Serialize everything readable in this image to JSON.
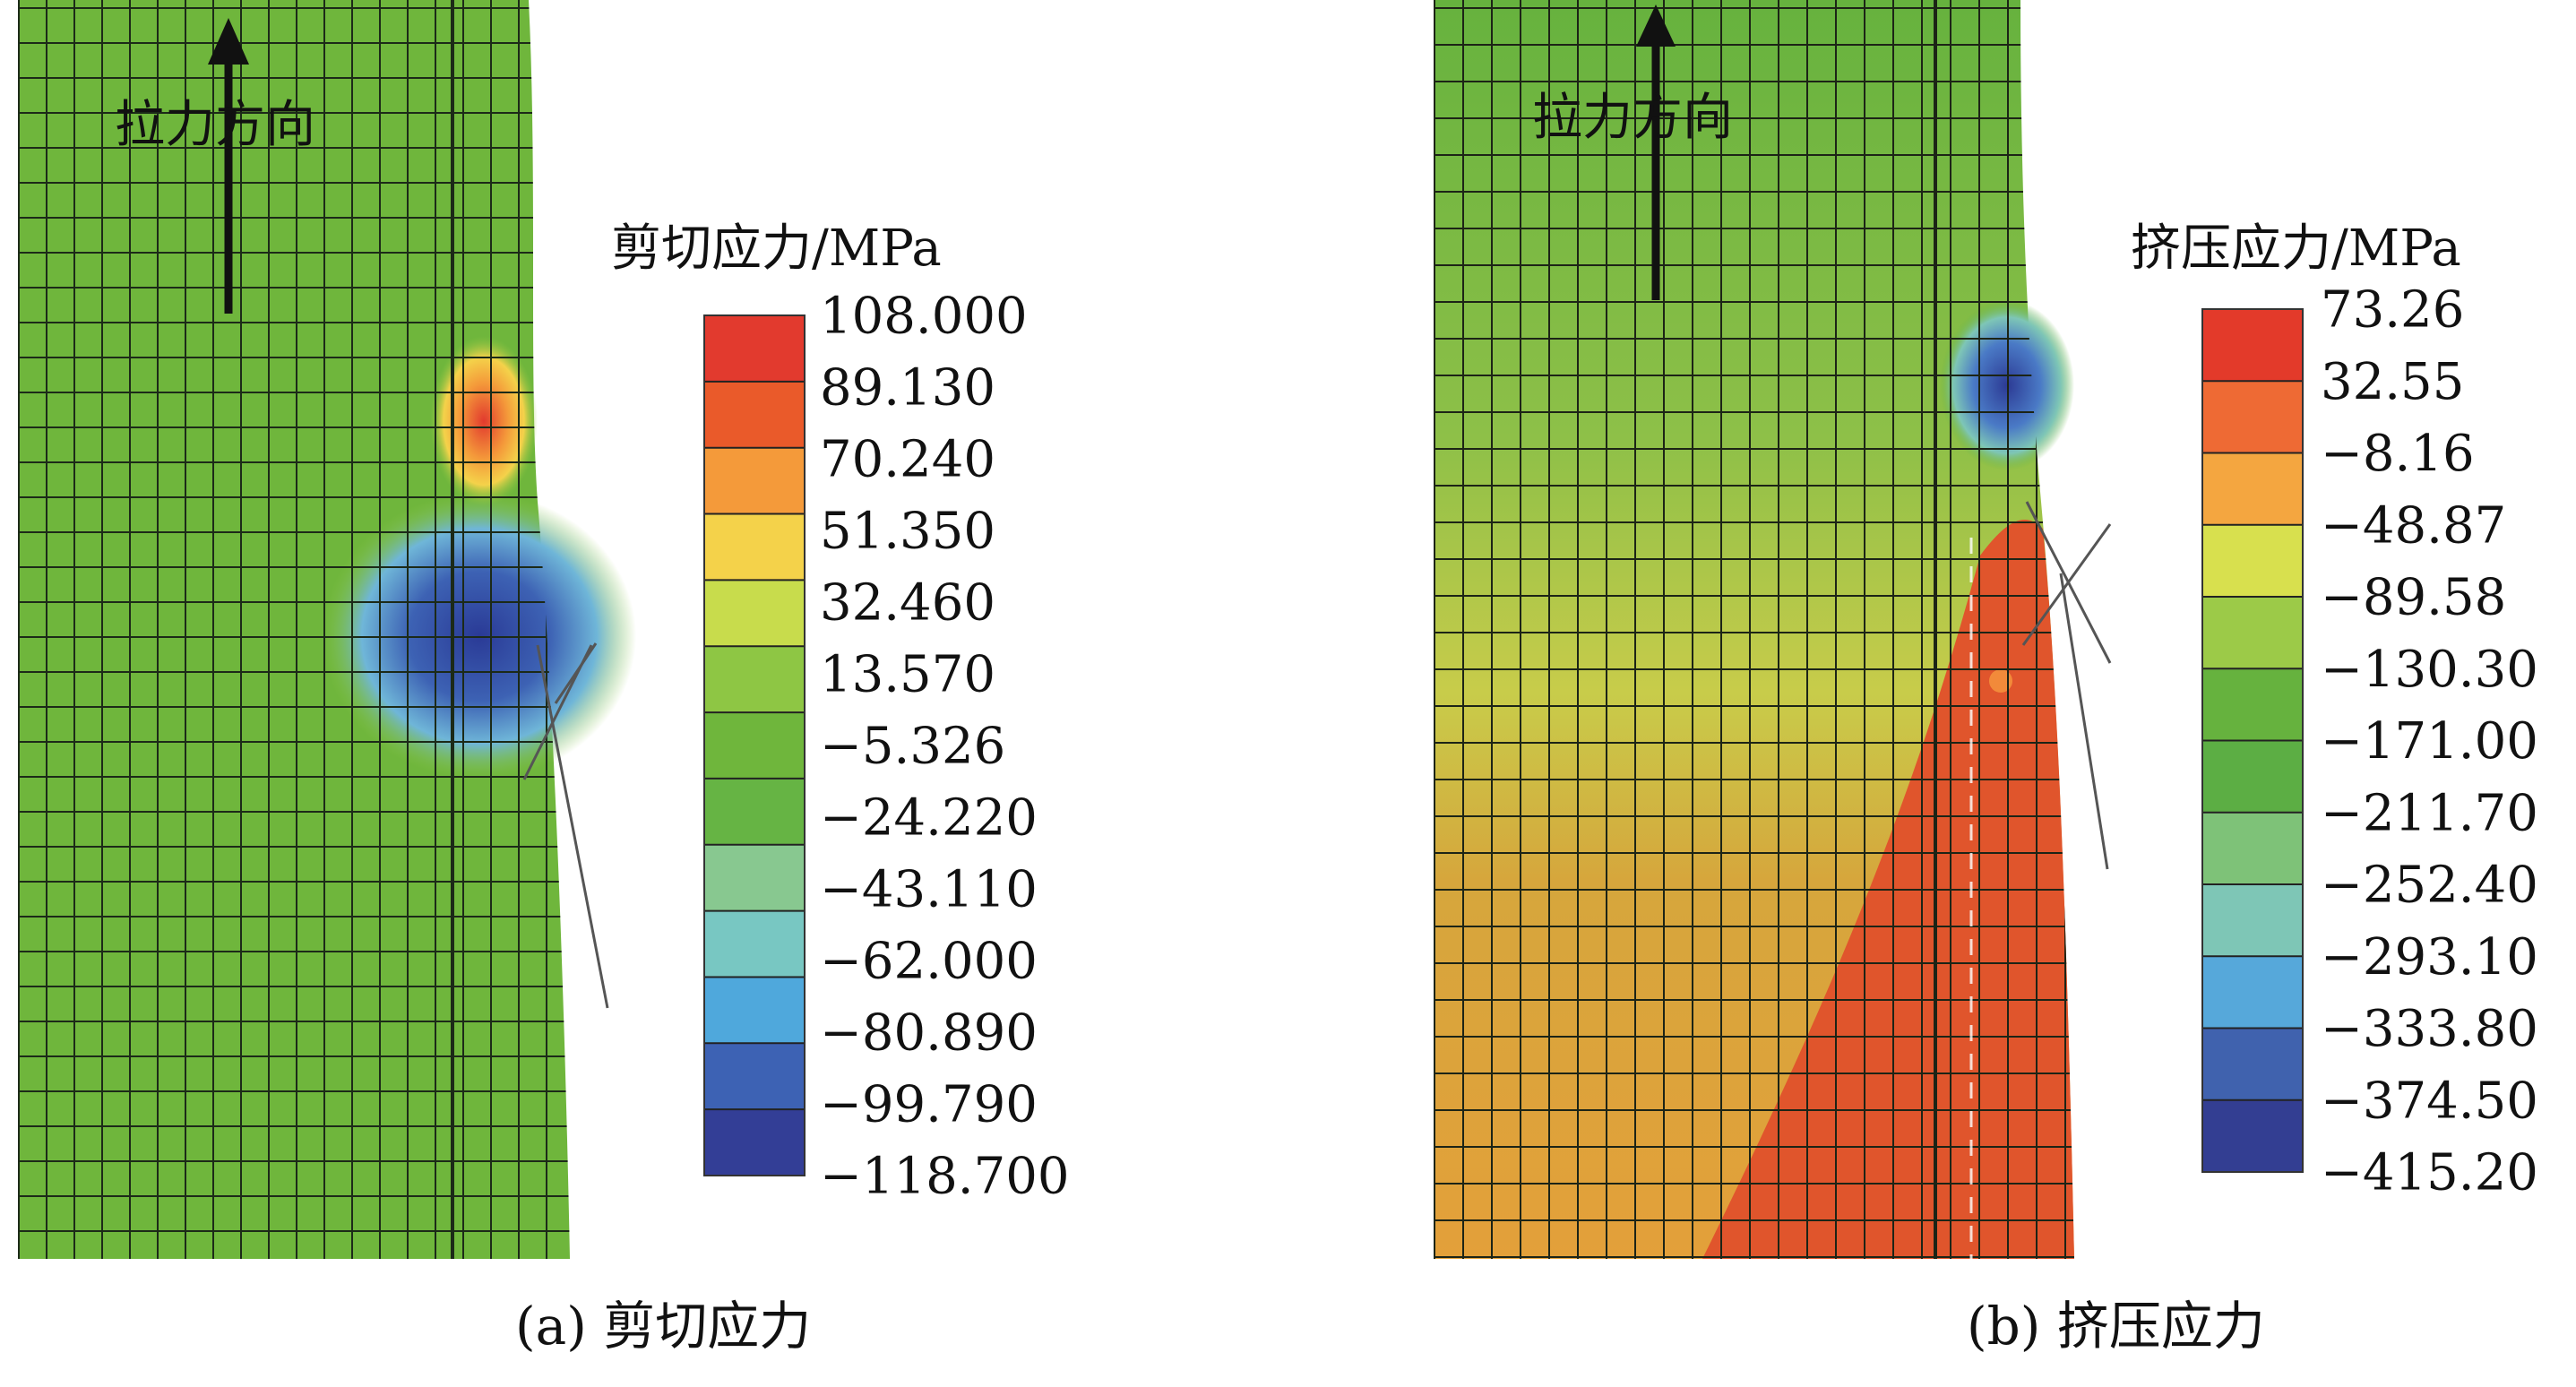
{
  "panels": [
    {
      "id": "a",
      "arrow_label": "拉力方向",
      "legend_title": "剪切应力/MPa",
      "legend_values": [
        "108.000",
        "89.130",
        "70.240",
        "51.350",
        "32.460",
        "13.570",
        "−5.326",
        "−24.220",
        "−43.110",
        "−62.000",
        "−80.890",
        "−99.790",
        "−118.700"
      ],
      "legend_colors": [
        "#e23a2e",
        "#ea5a2a",
        "#f49a3a",
        "#f4d24a",
        "#c8dc4c",
        "#8ec644",
        "#6fb63c",
        "#66b444",
        "#88c890",
        "#78c7c2",
        "#4fa8dc",
        "#3d62b4",
        "#333e96"
      ],
      "caption": "(a) 剪切应力"
    },
    {
      "id": "b",
      "arrow_label": "拉力方向",
      "legend_title": "挤压应力/MPa",
      "legend_values": [
        "73.26",
        "32.55",
        "−8.16",
        "−48.87",
        "−89.58",
        "−130.30",
        "−171.00",
        "−211.70",
        "−252.40",
        "−293.10",
        "−333.80",
        "−374.50",
        "−415.20"
      ],
      "legend_colors": [
        "#e33a2a",
        "#ee6a34",
        "#f4a640",
        "#d8e04e",
        "#9cca48",
        "#66b23e",
        "#5cae44",
        "#7ec278",
        "#7ec6b6",
        "#56a8da",
        "#4062ae",
        "#333e92"
      ],
      "caption": "(b) 挤压应力"
    }
  ]
}
